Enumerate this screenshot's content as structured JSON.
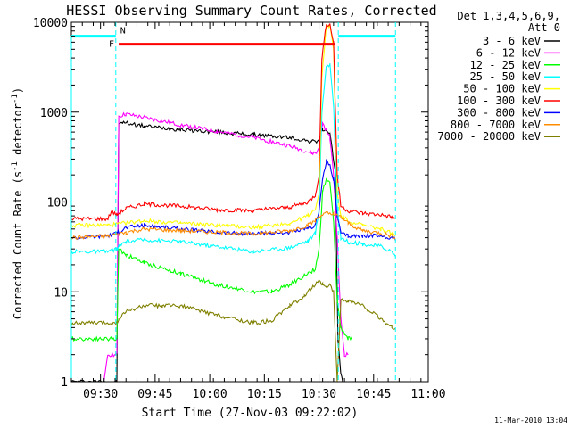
{
  "chart_data": {
    "type": "line",
    "title": "HESSI Observing Summary Count Rates, Corrected",
    "xlabel": "Start Time (27-Nov-03 09:22:02)",
    "ylabel_main": "Corrected Count Rate (s",
    "ylabel_sup1": "-1",
    "ylabel_mid": " detector",
    "ylabel_sup2": "-1",
    "ylabel_end": ")",
    "x_unit": "minutes after 09:22:02",
    "xlim": [
      0,
      98
    ],
    "ylim": [
      1,
      10000
    ],
    "yscale": "log",
    "x_ticks": [
      "09:30",
      "09:45",
      "10:00",
      "10:15",
      "10:30",
      "10:45",
      "11:00"
    ],
    "x_tick_values": [
      8,
      23,
      38,
      53,
      68,
      83,
      98
    ],
    "y_ticks": [
      "1",
      "10",
      "100",
      "1000",
      "10000"
    ],
    "y_tick_values": [
      1,
      10,
      100,
      1000,
      10000
    ],
    "legend": {
      "placement": "right",
      "header1": "Det 1,3,4,5,6,9,",
      "header2": "Att 0"
    },
    "series": [
      {
        "name": "3 - 6 keV",
        "color": "#000000",
        "x": [
          0,
          12.5,
          13,
          14,
          20,
          30,
          40,
          50,
          60,
          66,
          67.3,
          68,
          69,
          71,
          72.5,
          73.2,
          74,
          74.5
        ],
        "values": [
          1,
          1,
          720,
          770,
          700,
          640,
          600,
          560,
          520,
          470,
          470,
          500,
          650,
          560,
          220,
          3,
          1.2,
          1
        ]
      },
      {
        "name": "6 - 12 keV",
        "color": "#ff00ff",
        "x": [
          9,
          10,
          12.5,
          13,
          15,
          20,
          30,
          40,
          50,
          60,
          66,
          67.3,
          68,
          69,
          71,
          72,
          73,
          74,
          75,
          76
        ],
        "values": [
          1,
          2,
          2,
          900,
          950,
          870,
          720,
          610,
          520,
          420,
          350,
          350,
          420,
          750,
          520,
          200,
          40,
          5,
          2,
          2
        ]
      },
      {
        "name": "12 - 25 keV",
        "color": "#00ff00",
        "x": [
          0,
          12.5,
          13,
          15,
          20,
          30,
          40,
          50,
          55,
          60,
          65,
          67,
          68,
          69,
          70,
          71,
          72,
          73,
          74,
          76,
          77
        ],
        "values": [
          3,
          3,
          30,
          26,
          21,
          16,
          12,
          10,
          10,
          12,
          16,
          18,
          30,
          130,
          180,
          160,
          60,
          8,
          4,
          3,
          3
        ]
      },
      {
        "name": "25 - 50 keV",
        "color": "#00ffff",
        "x": [
          0,
          10,
          12.5,
          13,
          15,
          20,
          30,
          40,
          50,
          60,
          65,
          67,
          68,
          68.8,
          70,
          71,
          72,
          73,
          74,
          76,
          80,
          85,
          88,
          89
        ],
        "values": [
          28,
          28,
          30,
          32,
          36,
          38,
          36,
          32,
          28,
          31,
          37,
          45,
          80,
          1000,
          3300,
          3300,
          1200,
          90,
          40,
          36,
          34,
          32,
          28,
          25
        ]
      },
      {
        "name": "50 - 100 keV",
        "color": "#ffff00",
        "x": [
          0,
          10,
          15,
          20,
          30,
          40,
          50,
          60,
          65,
          67,
          68,
          68.8,
          70,
          71,
          72,
          73,
          74,
          76,
          80,
          85,
          88,
          89
        ],
        "values": [
          55,
          55,
          58,
          62,
          58,
          55,
          52,
          58,
          70,
          85,
          120,
          2500,
          9000,
          9000,
          5000,
          130,
          70,
          62,
          55,
          50,
          45,
          40
        ]
      },
      {
        "name": "100 - 300 keV",
        "color": "#ff0000",
        "x": [
          0,
          10,
          11,
          12.5,
          15,
          20,
          30,
          40,
          50,
          60,
          65,
          67,
          68,
          68.8,
          70,
          71,
          72,
          73,
          74,
          76,
          80,
          85,
          88,
          89
        ],
        "values": [
          65,
          65,
          78,
          72,
          85,
          95,
          90,
          82,
          80,
          88,
          100,
          120,
          200,
          4000,
          9500,
          9500,
          6000,
          200,
          90,
          80,
          75,
          72,
          68,
          65
        ]
      },
      {
        "name": "300 - 800 keV",
        "color": "#0000ff",
        "x": [
          0,
          10,
          12.5,
          15,
          20,
          30,
          40,
          50,
          60,
          65,
          67,
          68,
          69,
          70,
          71,
          72,
          73,
          74,
          76,
          80,
          85,
          88,
          89
        ],
        "values": [
          40,
          42,
          45,
          52,
          55,
          50,
          46,
          44,
          46,
          50,
          55,
          80,
          180,
          280,
          260,
          180,
          70,
          45,
          42,
          42,
          42,
          40,
          38
        ]
      },
      {
        "name": "800 - 7000 keV",
        "color": "#ff8c00",
        "x": [
          0,
          10,
          15,
          20,
          30,
          40,
          50,
          60,
          65,
          67,
          68,
          70,
          72,
          74,
          76,
          80,
          85,
          88,
          89
        ],
        "values": [
          40,
          42,
          46,
          50,
          48,
          46,
          44,
          48,
          55,
          62,
          70,
          75,
          72,
          68,
          58,
          48,
          45,
          42,
          40
        ]
      },
      {
        "name": "7000 - 20000 keV",
        "color": "#808000",
        "x": [
          0,
          12.5,
          13,
          15,
          20,
          25,
          30,
          40,
          50,
          55,
          60,
          64,
          66,
          68,
          69,
          70,
          71,
          72,
          73,
          74,
          76,
          80,
          85,
          88,
          89
        ],
        "values": [
          4.5,
          4.5,
          5,
          6,
          7,
          7,
          7,
          5.5,
          4.5,
          4.8,
          7,
          9,
          11,
          13,
          12,
          11,
          12,
          10,
          1,
          8,
          8,
          7,
          5,
          4,
          4
        ]
      }
    ],
    "flag_bars": [
      {
        "label": "N",
        "color": "#00ffff",
        "segments": [
          [
            0,
            12.2
          ],
          [
            73.3,
            89
          ]
        ],
        "level": 7000
      },
      {
        "label": "F",
        "color": "#ff0000",
        "segments": [
          [
            13,
            72.5
          ]
        ],
        "level": 5700
      }
    ],
    "vertical_markers": [
      12.2,
      73.3,
      89
    ],
    "footer_date": "11-Mar-2010 13:04"
  }
}
